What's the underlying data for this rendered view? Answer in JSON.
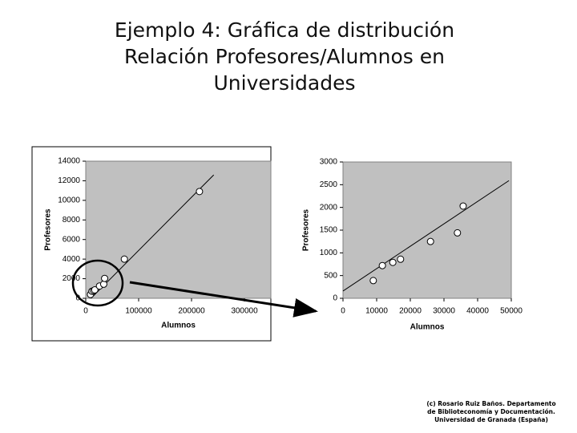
{
  "header": {
    "title": [
      "Ejemplo 4: Gráfica de distribución",
      "Relación Profesores/Alumnos en",
      "Universidades"
    ]
  },
  "chart_data": [
    {
      "type": "scatter",
      "x_label": "Alumnos",
      "y_label": "Profesores",
      "x": [
        9000,
        11700,
        14800,
        17100,
        26000,
        34000,
        35700,
        73000,
        215000
      ],
      "values": [
        390,
        720,
        790,
        860,
        1250,
        1440,
        2030,
        4000,
        10900
      ],
      "trendline": {
        "x": [
          10000,
          242000
        ],
        "y": [
          0,
          12600
        ]
      },
      "xlim": [
        0,
        350000
      ],
      "xticks": [
        0,
        100000,
        200000,
        300000
      ],
      "ylim": [
        0,
        14000
      ],
      "yticks": [
        0,
        2000,
        4000,
        6000,
        8000,
        10000,
        12000,
        14000
      ],
      "grid": false,
      "color": "#ffffff"
    },
    {
      "type": "scatter",
      "x_label": "Alumnos",
      "y_label": "Profesores",
      "x": [
        9000,
        11700,
        14800,
        17100,
        26000,
        34000,
        35700
      ],
      "values": [
        390,
        720,
        790,
        860,
        1250,
        1440,
        2030
      ],
      "trendline": {
        "x": [
          0,
          49300
        ],
        "y": [
          160,
          2590
        ]
      },
      "xlim": [
        0,
        50000
      ],
      "xticks": [
        0,
        10000,
        20000,
        30000,
        40000,
        50000
      ],
      "ylim": [
        0,
        3000
      ],
      "yticks": [
        0,
        500,
        1000,
        1500,
        2000,
        2500,
        3000
      ],
      "grid": false,
      "color": "#ffffff"
    }
  ],
  "footer": {
    "credit": [
      "(c) Rosario Ruiz Baños. Departamento",
      "de Biblioteconomía y Documentación.",
      "Universidad de Granada (España)"
    ]
  }
}
